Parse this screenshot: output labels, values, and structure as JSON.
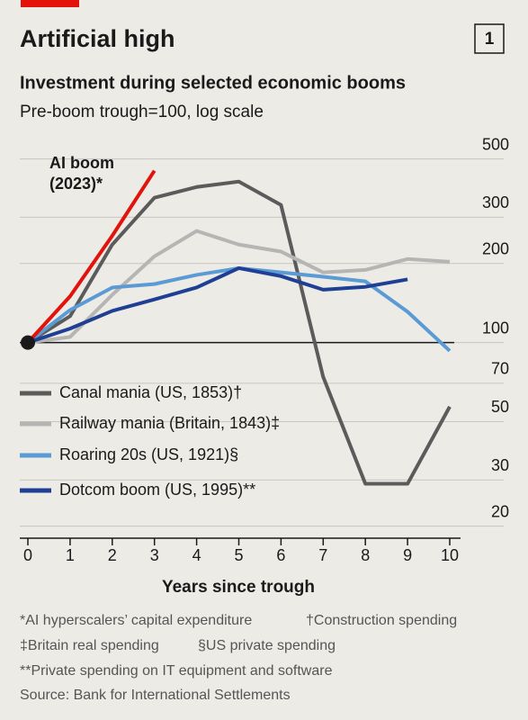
{
  "chart_data": {
    "type": "line",
    "title": "Artificial high",
    "chart_number": "1",
    "subtitle": "Investment during selected economic booms",
    "subtitle2": "Pre-boom trough=100, log scale",
    "x_label": "Years since trough",
    "x": [
      0,
      1,
      2,
      3,
      4,
      5,
      6,
      7,
      8,
      9,
      10
    ],
    "xlim": [
      0,
      10
    ],
    "xticks": [
      0,
      1,
      2,
      3,
      4,
      5,
      6,
      7,
      8,
      9,
      10
    ],
    "ylim": [
      18,
      570
    ],
    "yticks": [
      20,
      30,
      50,
      70,
      100,
      200,
      300,
      500
    ],
    "log_scale": true,
    "grid": true,
    "series": [
      {
        "name": "Canal mania (US, 1853)†",
        "color": "#5b5b5b",
        "values": [
          100,
          126,
          236,
          356,
          391,
          410,
          334,
          74,
          29,
          29,
          57
        ]
      },
      {
        "name": "Railway mania (Britain, 1843)‡",
        "color": "#b5b5b3",
        "values": [
          100,
          105,
          152,
          213,
          266,
          236,
          222,
          185,
          189,
          208,
          203
        ]
      },
      {
        "name": "Roaring 20s (US, 1921)§",
        "color": "#5b9bd5",
        "values": [
          100,
          133,
          162,
          167,
          181,
          192,
          185,
          178,
          171,
          131,
          93
        ]
      },
      {
        "name": "Dotcom boom (US, 1995)**",
        "color": "#1f3f95",
        "values": [
          100,
          113,
          132,
          146,
          162,
          192,
          179,
          159,
          163,
          174,
          null
        ]
      },
      {
        "name": "AI boom (2023)*",
        "color": "#e3120b",
        "values": [
          100,
          150,
          255,
          451,
          null,
          null,
          null,
          null,
          null,
          null,
          null
        ]
      }
    ],
    "footnotes": [
      "*AI hyperscalers’ capital expenditure",
      "†Construction spending",
      "‡Britain real spending",
      "§US private spending",
      "**Private spending on IT equipment and software"
    ],
    "source": "Source: Bank for International Settlements"
  }
}
